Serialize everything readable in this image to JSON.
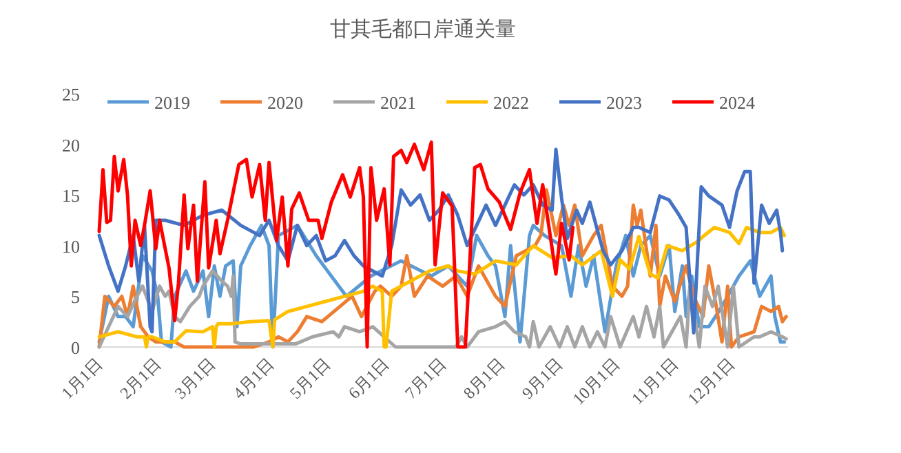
{
  "chart_data": {
    "type": "line",
    "title": "甘其毛都口岸通关量",
    "ylim": [
      0,
      25
    ],
    "yticks": [
      0,
      5,
      10,
      15,
      20,
      25
    ],
    "xlim": [
      "--01-01",
      "--12-31"
    ],
    "xticks": [
      {
        "value": "--01-01",
        "label": "1月1日"
      },
      {
        "value": "--02-01",
        "label": "2月1日"
      },
      {
        "value": "--03-01",
        "label": "3月1日"
      },
      {
        "value": "--04-01",
        "label": "4月1日"
      },
      {
        "value": "--05-01",
        "label": "5月1日"
      },
      {
        "value": "--06-01",
        "label": "6月1日"
      },
      {
        "value": "--07-01",
        "label": "7月1日"
      },
      {
        "value": "--08-01",
        "label": "8月1日"
      },
      {
        "value": "--09-01",
        "label": "9月1日"
      },
      {
        "value": "--10-01",
        "label": "10月1日"
      },
      {
        "value": "--11-01",
        "label": "11月1日"
      },
      {
        "value": "--12-01",
        "label": "12月1日"
      }
    ],
    "grid": false,
    "legend": "top",
    "marker": "none",
    "line_style": "solid",
    "series": [
      {
        "name": "2019",
        "color": "#5b9bd5",
        "x": [
          "--01-01",
          "--01-06",
          "--01-11",
          "--01-15",
          "--01-19",
          "--01-24",
          "--01-29",
          "--02-01",
          "--02-03",
          "--02-08",
          "--02-10",
          "--02-16",
          "--02-20",
          "--02-25",
          "--02-28",
          "--03-02",
          "--03-05",
          "--03-08",
          "--03-12",
          "--03-14",
          "--03-16",
          "--03-21",
          "--03-27",
          "--03-31",
          "--04-02",
          "--04-05",
          "--04-15",
          "--04-25",
          "--05-11",
          "--05-24",
          "--06-09",
          "--06-25",
          "--07-04",
          "--07-14",
          "--07-19",
          "--07-25",
          "--07-29",
          "--08-03",
          "--08-06",
          "--08-11",
          "--08-16",
          "--08-18",
          "--08-24",
          "--09-02",
          "--09-07",
          "--09-11",
          "--09-15",
          "--09-19",
          "--09-25",
          "--10-01",
          "--10-06",
          "--10-10",
          "--10-14",
          "--10-19",
          "--10-24",
          "--10-29",
          "--11-01",
          "--11-05",
          "--11-07",
          "--11-10",
          "--11-14",
          "--11-19",
          "--11-26",
          "--12-05",
          "--12-11",
          "--12-16",
          "--12-22",
          "--12-24",
          "--12-27",
          "--12-29"
        ],
        "values": [
          0.5,
          5,
          3,
          3,
          2,
          9,
          7.5,
          5,
          0.5,
          0,
          5,
          7.5,
          5.5,
          7.5,
          3,
          8,
          5,
          8,
          8.5,
          2,
          8,
          10,
          12,
          10,
          0,
          11,
          12,
          9,
          5,
          7,
          8.5,
          7,
          8,
          6,
          11,
          9,
          8,
          3,
          10,
          0.5,
          11,
          12,
          11,
          10,
          5,
          10,
          6,
          9,
          1.5,
          8,
          11,
          7,
          10,
          11,
          7,
          10,
          3.5,
          8,
          3,
          7,
          2,
          2,
          4,
          7,
          8.5,
          5,
          7,
          3,
          0.5,
          0.5
        ]
      },
      {
        "name": "2020",
        "color": "#ed7d31",
        "x": [
          "--01-01",
          "--01-04",
          "--01-09",
          "--01-13",
          "--01-16",
          "--01-19",
          "--01-23",
          "--01-27",
          "--01-31",
          "--02-10",
          "--02-15",
          "--02-18",
          "--03-23",
          "--03-31",
          "--04-05",
          "--04-10",
          "--04-15",
          "--04-20",
          "--04-28",
          "--05-14",
          "--05-19",
          "--05-26",
          "--05-29",
          "--06-04",
          "--06-09",
          "--06-12",
          "--06-16",
          "--06-23",
          "--07-01",
          "--07-08",
          "--07-14",
          "--07-20",
          "--07-29",
          "--08-03",
          "--08-09",
          "--08-19",
          "--08-22",
          "--08-25",
          "--08-30",
          "--09-03",
          "--09-06",
          "--09-09",
          "--09-13",
          "--09-19",
          "--09-23",
          "--09-26",
          "--09-29",
          "--10-04",
          "--10-07",
          "--10-10",
          "--10-12",
          "--10-14",
          "--10-19",
          "--10-22",
          "--10-24",
          "--10-27",
          "--11-01",
          "--11-07",
          "--11-11",
          "--11-16",
          "--11-19",
          "--11-23",
          "--11-26",
          "--11-29",
          "--12-01",
          "--12-05",
          "--12-13",
          "--12-17",
          "--12-22",
          "--12-26",
          "--12-28",
          "--12-30"
        ],
        "values": [
          0,
          5,
          4,
          5,
          3,
          6,
          2,
          1,
          0.5,
          0.5,
          0,
          0,
          0,
          0.5,
          1,
          0.5,
          1.5,
          3,
          2.5,
          5,
          3,
          5.5,
          6,
          5,
          6,
          9,
          5,
          7,
          6,
          7,
          5,
          8,
          5,
          4,
          9,
          10,
          11,
          15.5,
          11,
          14,
          12,
          14,
          9,
          11,
          12,
          9,
          6,
          5,
          6,
          14,
          12,
          13.5,
          7,
          12,
          4,
          7,
          4.5,
          8,
          5,
          3,
          8,
          4,
          0.5,
          6,
          0,
          1,
          1.5,
          4,
          3.5,
          4,
          2.5,
          3
        ]
      },
      {
        "name": "2021",
        "color": "#a5a5a5",
        "x": [
          "--01-01",
          "--01-06",
          "--01-11",
          "--01-16",
          "--01-21",
          "--01-24",
          "--01-29",
          "--02-02",
          "--02-05",
          "--02-07",
          "--02-10",
          "--02-13",
          "--02-18",
          "--02-23",
          "--02-25",
          "--03-01",
          "--03-06",
          "--03-09",
          "--03-11",
          "--03-12",
          "--03-13",
          "--03-16",
          "--04-02",
          "--04-14",
          "--04-23",
          "--05-04",
          "--05-07",
          "--05-10",
          "--05-18",
          "--05-25",
          "--06-06",
          "--07-08",
          "--07-11",
          "--07-14",
          "--07-20",
          "--07-29",
          "--08-03",
          "--08-08",
          "--08-14",
          "--08-16",
          "--08-18",
          "--08-21",
          "--08-27",
          "--09-01",
          "--09-05",
          "--09-09",
          "--09-13",
          "--09-17",
          "--09-21",
          "--09-25",
          "--09-28",
          "--10-03",
          "--10-10",
          "--10-13",
          "--10-17",
          "--10-21",
          "--10-24",
          "--10-26",
          "--11-04",
          "--11-07",
          "--11-09",
          "--11-14",
          "--11-17",
          "--11-21",
          "--11-24",
          "--11-29",
          "--12-02",
          "--12-05",
          "--12-13",
          "--12-16",
          "--12-22",
          "--12-28",
          "--12-30"
        ],
        "values": [
          0,
          2,
          4,
          3,
          5,
          6,
          3.5,
          6,
          5,
          5.5,
          3,
          2.5,
          4,
          5,
          6,
          7.5,
          6.5,
          6,
          5,
          7,
          0.5,
          0.3,
          0.3,
          0.3,
          1,
          1.5,
          1,
          2,
          1.5,
          2,
          0,
          0,
          1,
          0,
          1.5,
          2,
          2.5,
          1.5,
          1,
          0,
          2.5,
          0,
          2,
          0,
          2,
          0,
          2,
          0,
          1.5,
          0,
          3,
          0,
          3,
          1,
          4,
          1,
          4,
          0,
          3,
          0,
          6,
          0,
          6,
          4,
          6,
          0,
          6,
          0,
          1,
          1,
          1.5,
          1,
          0.8
        ]
      },
      {
        "name": "2022",
        "color": "#ffc000",
        "x": [
          "--01-01",
          "--01-11",
          "--01-21",
          "--01-25",
          "--01-26",
          "--01-27",
          "--01-29",
          "--02-05",
          "--02-10",
          "--02-16",
          "--02-25",
          "--03-01",
          "--03-02",
          "--03-03",
          "--03-04",
          "--03-11",
          "--03-21",
          "--03-31",
          "--04-02",
          "--04-03",
          "--04-10",
          "--04-20",
          "--04-30",
          "--05-10",
          "--05-20",
          "--05-25",
          "--05-30",
          "--05-31",
          "--06-01",
          "--06-04",
          "--06-14",
          "--06-24",
          "--07-04",
          "--07-09",
          "--07-18",
          "--07-29",
          "--08-09",
          "--08-18",
          "--08-28",
          "--09-07",
          "--09-13",
          "--09-23",
          "--09-29",
          "--10-03",
          "--10-08",
          "--10-13",
          "--10-19",
          "--10-23",
          "--10-28",
          "--11-05",
          "--11-13",
          "--11-16",
          "--11-22",
          "--11-30",
          "--12-05",
          "--12-09",
          "--12-16",
          "--12-22",
          "--12-27",
          "--12-29"
        ],
        "values": [
          1,
          1.5,
          1,
          1,
          0,
          1,
          1,
          0.5,
          0.5,
          1.6,
          1.5,
          2,
          0,
          2,
          2.3,
          2.3,
          2.5,
          2.6,
          0,
          2.7,
          3.5,
          4,
          4.5,
          5,
          5.5,
          6,
          5.5,
          0,
          0,
          5.5,
          6.5,
          7.5,
          8,
          7.5,
          7.2,
          8.5,
          8.1,
          10,
          8.8,
          9,
          8.1,
          9.5,
          5,
          8.6,
          7.7,
          10.9,
          7.2,
          6.8,
          10,
          9.5,
          10.4,
          10.9,
          11.8,
          11.3,
          10.2,
          11.8,
          11.3,
          11.3,
          11.8,
          11
        ]
      },
      {
        "name": "2023",
        "color": "#4472c4",
        "x": [
          "--01-01",
          "--01-06",
          "--01-11",
          "--01-15",
          "--01-19",
          "--01-22",
          "--01-25",
          "--01-28",
          "--01-29",
          "--01-31",
          "--02-05",
          "--02-15",
          "--02-25",
          "--03-06",
          "--03-16",
          "--03-26",
          "--03-31",
          "--04-05",
          "--04-10",
          "--04-15",
          "--04-20",
          "--04-25",
          "--04-30",
          "--05-05",
          "--05-10",
          "--05-15",
          "--05-20",
          "--05-30",
          "--06-04",
          "--06-09",
          "--06-14",
          "--06-19",
          "--06-24",
          "--06-29",
          "--07-04",
          "--07-09",
          "--07-14",
          "--07-19",
          "--07-24",
          "--07-29",
          "--08-03",
          "--08-08",
          "--08-13",
          "--08-18",
          "--08-23",
          "--08-28",
          "--08-30",
          "--09-02",
          "--09-05",
          "--09-10",
          "--09-13",
          "--09-17",
          "--09-20",
          "--09-24",
          "--09-28",
          "--10-04",
          "--10-10",
          "--10-13",
          "--10-19",
          "--10-24",
          "--10-29",
          "--11-03",
          "--11-07",
          "--11-11",
          "--11-15",
          "--11-19",
          "--11-26",
          "--11-30",
          "--12-04",
          "--12-08",
          "--12-11",
          "--12-13",
          "--12-17",
          "--12-21",
          "--12-25",
          "--12-27",
          "--12-28"
        ],
        "values": [
          11,
          8,
          5.5,
          8,
          11,
          6.5,
          12,
          2,
          1.5,
          12.5,
          12.5,
          12,
          13,
          13.5,
          12,
          11,
          12.5,
          10,
          8.5,
          12,
          10,
          11,
          8.5,
          9,
          10.5,
          9,
          8,
          7,
          10,
          15.5,
          14,
          15,
          12.5,
          13.5,
          15,
          13,
          10,
          12,
          14,
          12,
          14,
          16,
          15,
          16,
          14,
          13.5,
          19.5,
          14.7,
          10.7,
          13.5,
          12.2,
          14.3,
          12.2,
          9.5,
          8.1,
          9.5,
          11.8,
          11.8,
          11.3,
          14.9,
          14.5,
          13.1,
          11.8,
          1.4,
          15.8,
          14.9,
          14,
          11.8,
          15.4,
          17.3,
          17.3,
          6.3,
          14,
          12.2,
          13.5,
          11.3,
          9.5
        ]
      },
      {
        "name": "2024",
        "color": "#ff0000",
        "x": [
          "--01-01",
          "--01-03",
          "--01-05",
          "--01-07",
          "--01-09",
          "--01-11",
          "--01-14",
          "--01-16",
          "--01-18",
          "--01-20",
          "--01-23",
          "--01-25",
          "--01-28",
          "--01-31",
          "--02-02",
          "--02-07",
          "--02-10",
          "--02-12",
          "--02-15",
          "--02-17",
          "--02-20",
          "--02-22",
          "--02-26",
          "--02-28",
          "--03-03",
          "--03-05",
          "--03-09",
          "--03-13",
          "--03-15",
          "--03-19",
          "--03-22",
          "--03-26",
          "--03-29",
          "--03-31",
          "--04-04",
          "--04-07",
          "--04-10",
          "--04-12",
          "--04-16",
          "--04-21",
          "--04-26",
          "--04-28",
          "--05-03",
          "--05-09",
          "--05-13",
          "--05-18",
          "--05-20",
          "--05-22",
          "--05-24",
          "--05-27",
          "--05-31",
          "--06-03",
          "--06-05",
          "--06-09",
          "--06-12",
          "--06-16",
          "--06-21",
          "--06-25",
          "--06-27",
          "--07-01",
          "--07-06",
          "--07-09",
          "--07-13",
          "--07-18",
          "--07-21",
          "--07-25",
          "--07-31",
          "--08-06",
          "--08-11",
          "--08-16",
          "--08-20",
          "--08-23",
          "--08-30",
          "--09-02",
          "--09-06",
          "--09-08"
        ],
        "values": [
          11.4,
          17.5,
          12.3,
          12.5,
          18.8,
          15.4,
          18.5,
          15,
          8,
          12.5,
          10,
          12,
          15.4,
          9.7,
          12.5,
          7.8,
          2.6,
          6.3,
          15,
          9.7,
          14,
          6.5,
          16.3,
          7.8,
          12.5,
          9.2,
          12.5,
          16.2,
          18,
          18.5,
          14.8,
          18,
          12.5,
          18.2,
          10.5,
          14.8,
          8,
          13.6,
          15.2,
          12.5,
          12.5,
          10.7,
          14.3,
          17,
          14.8,
          17.7,
          14.8,
          0,
          17.7,
          12.5,
          15.6,
          8.1,
          18.8,
          19.4,
          18.2,
          20,
          17.5,
          20.2,
          8.1,
          15.2,
          13.9,
          0,
          0,
          17.7,
          18,
          15.6,
          14.3,
          11.6,
          15.2,
          17.5,
          12.2,
          16,
          7.2,
          12.2,
          8.6,
          11.8
        ]
      }
    ]
  }
}
